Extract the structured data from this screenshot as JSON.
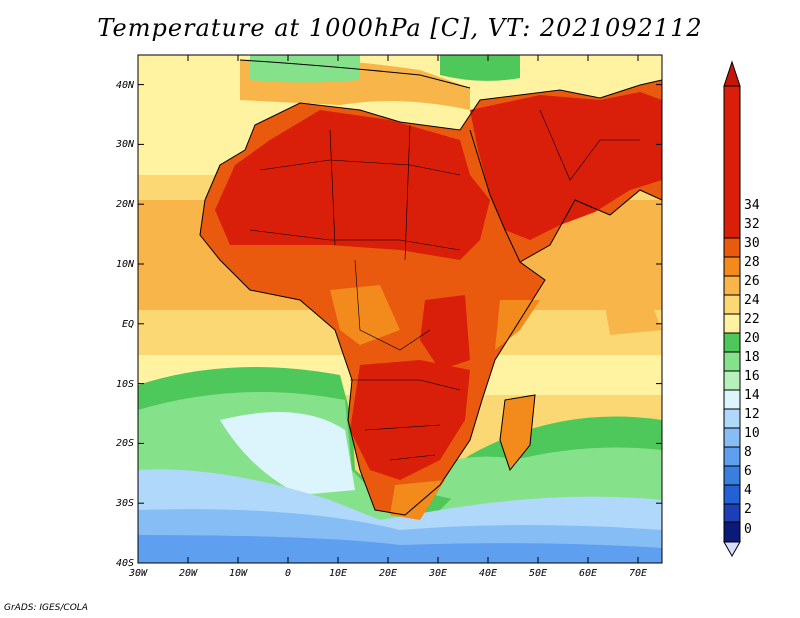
{
  "title": "Temperature at 1000hPa [C], VT: 2021092112",
  "credit": "GrADS: IGES/COLA",
  "map": {
    "lon_range": [
      -30,
      75
    ],
    "lat_range": [
      -40,
      45
    ],
    "x_ticks": [
      "30W",
      "20W",
      "10W",
      "0",
      "10E",
      "20E",
      "30E",
      "40E",
      "50E",
      "60E",
      "70E"
    ],
    "y_ticks": [
      "40S",
      "30S",
      "20S",
      "10S",
      "EQ",
      "10N",
      "20N",
      "30N",
      "40N"
    ]
  },
  "colorbar": {
    "labels": [
      "0",
      "2",
      "4",
      "6",
      "8",
      "10",
      "12",
      "14",
      "16",
      "18",
      "20",
      "22",
      "24",
      "26",
      "28",
      "30",
      "32",
      "34"
    ],
    "colors": [
      "#0a1a78",
      "#1c3fb8",
      "#2560d4",
      "#3a7fe0",
      "#5f9ff0",
      "#86bdf5",
      "#b0d8fa",
      "#dcf4fc",
      "#b8f0bc",
      "#86e28a",
      "#4ec85a",
      "#fff2a0",
      "#fbd874",
      "#f7b54a",
      "#f28a1c",
      "#ea5a0e",
      "#d91e0a"
    ],
    "under_color": "#dcdcfc",
    "over_color": "#c81606"
  }
}
